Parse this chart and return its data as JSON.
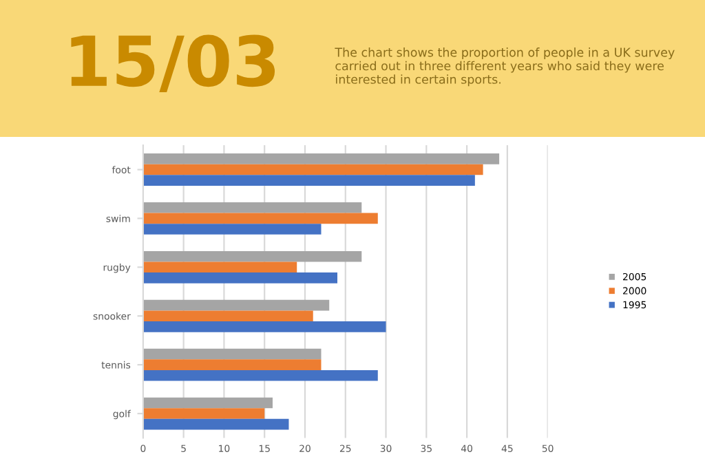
{
  "chart_data": {
    "type": "bar",
    "orientation": "horizontal",
    "title": "15/03",
    "subtitle": "The chart shows the proportion of people in a UK survey carried out in three different years who said they were interested in certain sports.",
    "categories": [
      "foot",
      "swim",
      "rugby",
      "snooker",
      "tennis",
      "golf"
    ],
    "series": [
      {
        "name": "2005",
        "color": "#a5a5a5",
        "values": [
          44,
          27,
          27,
          23,
          22,
          16
        ]
      },
      {
        "name": "2000",
        "color": "#ed7d31",
        "values": [
          42,
          29,
          19,
          21,
          22,
          15
        ]
      },
      {
        "name": "1995",
        "color": "#4472c4",
        "values": [
          41,
          22,
          24,
          30,
          29,
          18
        ]
      }
    ],
    "xlim": [
      0,
      50
    ],
    "xticks": [
      0,
      5,
      10,
      15,
      20,
      25,
      30,
      35,
      40,
      45,
      50
    ],
    "grid": "x",
    "legend": "right"
  }
}
